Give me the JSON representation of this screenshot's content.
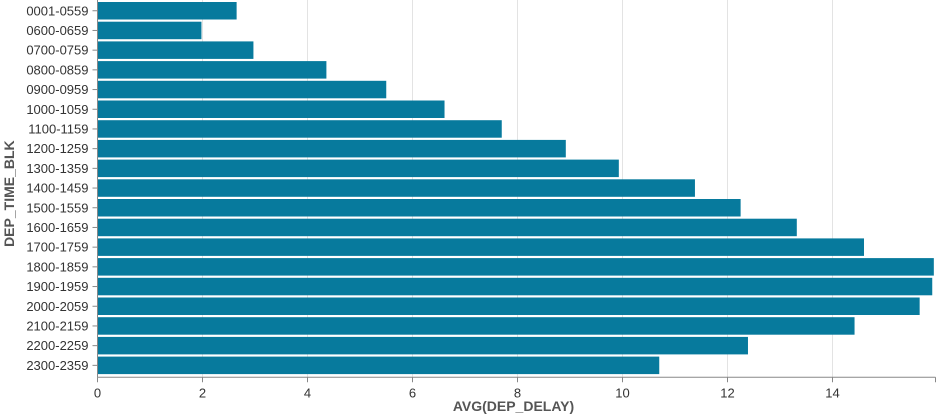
{
  "chart_data": {
    "type": "bar",
    "orientation": "horizontal",
    "xlabel": "AVG(DEP_DELAY)",
    "ylabel": "DEP_TIME_BLK",
    "xlim": [
      0,
      16
    ],
    "x_ticks": [
      0,
      2,
      4,
      6,
      8,
      10,
      12,
      14
    ],
    "grid": true,
    "bar_color": "#077a9d",
    "categories": [
      "0001-0559",
      "0600-0659",
      "0700-0759",
      "0800-0859",
      "0900-0959",
      "1000-1059",
      "1100-1159",
      "1200-1259",
      "1300-1359",
      "1400-1459",
      "1500-1559",
      "1600-1659",
      "1700-1759",
      "1800-1859",
      "1900-1959",
      "2000-2059",
      "2100-2159",
      "2200-2259",
      "2300-2359"
    ],
    "values": [
      2.65,
      1.98,
      2.97,
      4.36,
      5.5,
      6.61,
      7.7,
      8.92,
      9.93,
      11.38,
      12.25,
      13.32,
      14.6,
      15.93,
      15.9,
      15.66,
      14.42,
      12.39,
      10.7
    ]
  }
}
